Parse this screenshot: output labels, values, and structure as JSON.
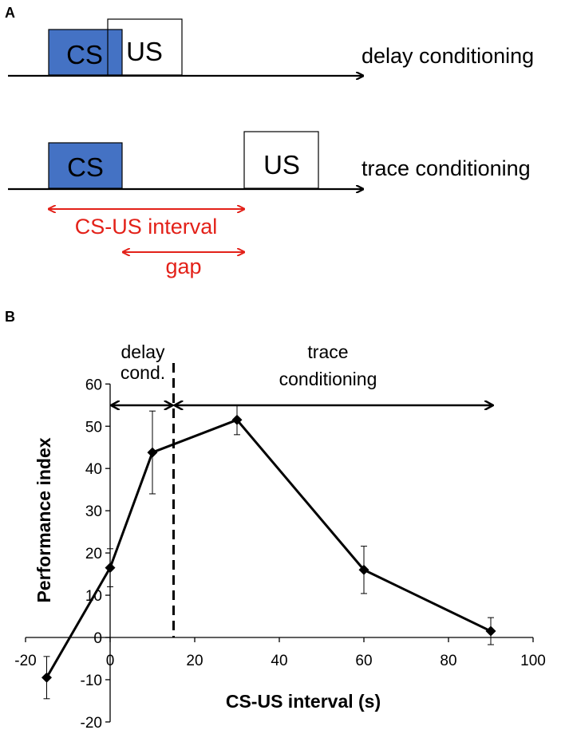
{
  "panel_a": {
    "label": "A",
    "delay": {
      "cs_label": "CS",
      "us_label": "US",
      "name": "delay conditioning"
    },
    "trace": {
      "cs_label": "CS",
      "us_label": "US",
      "name": "trace conditioning"
    },
    "interval_label": "CS-US interval",
    "gap_label": "gap",
    "colors": {
      "cs_fill": "#4472c4",
      "red": "#e32119"
    }
  },
  "panel_b": {
    "label": "B",
    "annotations": {
      "delay_line1": "delay",
      "delay_line2": "cond.",
      "trace_line1": "trace",
      "trace_line2": "conditioning"
    }
  },
  "chart_data": {
    "type": "line",
    "title": "",
    "xlabel": "CS-US interval (s)",
    "ylabel": "Performance index",
    "xlim": [
      -20,
      100
    ],
    "ylim": [
      -20,
      60
    ],
    "xticks": [
      -20,
      0,
      20,
      40,
      60,
      80,
      100
    ],
    "yticks": [
      -20,
      -10,
      0,
      10,
      20,
      30,
      40,
      50,
      60
    ],
    "grid": false,
    "series": [
      {
        "x": [
          -15,
          0,
          10,
          30,
          60,
          90
        ],
        "y": [
          -9.5,
          16.5,
          43.8,
          51.5,
          16.0,
          1.5
        ],
        "err": [
          5.0,
          4.5,
          9.8,
          3.5,
          5.6,
          3.2
        ]
      }
    ],
    "boundary_x": 15
  }
}
